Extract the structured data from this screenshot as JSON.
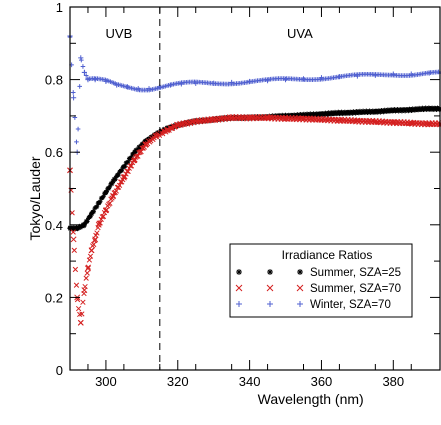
{
  "chart_data": {
    "type": "scatter",
    "title": "",
    "xlabel": "Wavelength (nm)",
    "ylabel": "Tokyo/Lauder",
    "xlim": [
      290,
      393
    ],
    "ylim": [
      0,
      1
    ],
    "xticks": [
      300,
      320,
      340,
      360,
      380
    ],
    "yticks": [
      0,
      0.2,
      0.4,
      0.6,
      0.8,
      1
    ],
    "ytick_labels": [
      "0",
      "0.2",
      "0.4",
      "0.6",
      "0.8",
      "1"
    ],
    "xtick_labels": [
      "300",
      "320",
      "340",
      "360",
      "380"
    ],
    "divider_x": 315,
    "regions": [
      {
        "label": "UVB"
      },
      {
        "label": "UVA"
      }
    ],
    "grid": false,
    "legend": {
      "placement": "right-middle",
      "title": "Irradiance Ratios",
      "entries": [
        {
          "marker": "*",
          "color": "#000000",
          "name": "Summer, SZA=25"
        },
        {
          "marker": "×",
          "color": "#d42020",
          "name": "Summer, SZA=70"
        },
        {
          "marker": "+",
          "color": "#5060d0",
          "name": "Winter,    SZA=70"
        }
      ]
    },
    "series": [
      {
        "name": "Summer, SZA=25",
        "color": "#000000",
        "marker": "*",
        "x": [
          290,
          292,
          294,
          296,
          298,
          300,
          302,
          305,
          308,
          311,
          314,
          317,
          320,
          325,
          330,
          335,
          340,
          345,
          350,
          355,
          360,
          365,
          370,
          375,
          380,
          385,
          390,
          393
        ],
        "y": [
          0.39,
          0.39,
          0.4,
          0.43,
          0.46,
          0.49,
          0.52,
          0.56,
          0.6,
          0.63,
          0.65,
          0.665,
          0.675,
          0.685,
          0.69,
          0.695,
          0.695,
          0.697,
          0.7,
          0.702,
          0.705,
          0.708,
          0.71,
          0.712,
          0.715,
          0.717,
          0.72,
          0.72
        ]
      },
      {
        "name": "Summer, SZA=70",
        "color": "#d42020",
        "marker": "×",
        "x": [
          290,
          291,
          292,
          293,
          294,
          295,
          296,
          297,
          298,
          300,
          302,
          305,
          308,
          311,
          314,
          317,
          320,
          325,
          330,
          335,
          340,
          345,
          350,
          355,
          360,
          365,
          370,
          375,
          380,
          385,
          390,
          393
        ],
        "y": [
          0.55,
          0.36,
          0.2,
          0.13,
          0.22,
          0.28,
          0.33,
          0.36,
          0.4,
          0.44,
          0.48,
          0.53,
          0.58,
          0.62,
          0.645,
          0.66,
          0.675,
          0.685,
          0.69,
          0.695,
          0.695,
          0.695,
          0.693,
          0.692,
          0.69,
          0.688,
          0.686,
          0.684,
          0.682,
          0.68,
          0.678,
          0.678
        ]
      },
      {
        "name": "Winter,    SZA=70",
        "color": "#5060d0",
        "marker": "+",
        "x": [
          290,
          291,
          292,
          293,
          294,
          295,
          297,
          300,
          303,
          306,
          309,
          312,
          315,
          318,
          321,
          325,
          330,
          335,
          340,
          345,
          350,
          355,
          360,
          365,
          370,
          375,
          380,
          385,
          390,
          393
        ],
        "y": [
          0.92,
          0.75,
          0.6,
          0.86,
          0.82,
          0.8,
          0.8,
          0.795,
          0.785,
          0.78,
          0.775,
          0.775,
          0.78,
          0.785,
          0.788,
          0.79,
          0.79,
          0.792,
          0.795,
          0.797,
          0.8,
          0.802,
          0.805,
          0.808,
          0.81,
          0.812,
          0.815,
          0.815,
          0.818,
          0.818
        ]
      }
    ]
  }
}
